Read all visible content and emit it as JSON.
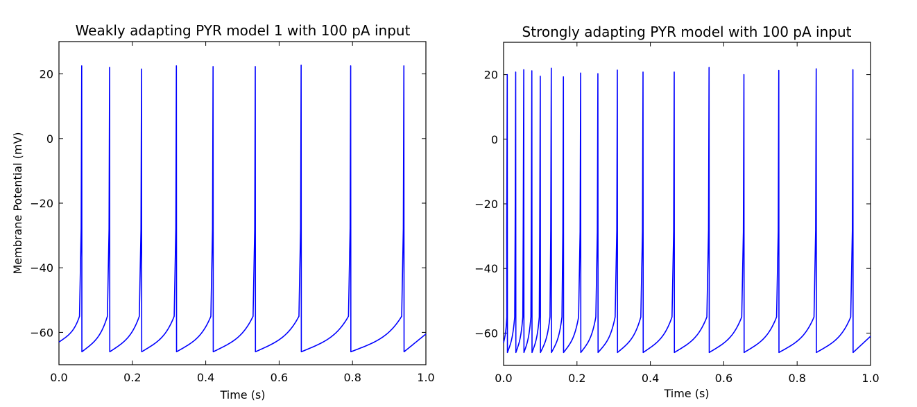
{
  "chart_data": [
    {
      "type": "line",
      "title": "Weakly adapting PYR model 1 with 100 pA input",
      "xlabel": "Time (s)",
      "ylabel": "Membrane Potential (mV)",
      "xlim": [
        0.0,
        1.0
      ],
      "ylim": [
        -70,
        30
      ],
      "xticks": [
        "0.0",
        "0.2",
        "0.4",
        "0.6",
        "0.8",
        "1.0"
      ],
      "yticks": [
        "−60",
        "−40",
        "−20",
        "0",
        "20"
      ],
      "grid": false,
      "color": "#0000ff",
      "baseline_start": -63,
      "reset_potential": -66,
      "threshold": -55,
      "end_value": -60.5,
      "spike_times": [
        0.062,
        0.138,
        0.225,
        0.32,
        0.42,
        0.535,
        0.66,
        0.795,
        0.94
      ],
      "spike_peaks": [
        22.5,
        22.0,
        21.5,
        22.5,
        22.3,
        22.3,
        22.7,
        22.5,
        22.5
      ]
    },
    {
      "type": "line",
      "title": "Strongly adapting PYR model with 100 pA input",
      "xlabel": "Time (s)",
      "ylabel": "",
      "xlim": [
        0.0,
        1.0
      ],
      "ylim": [
        -70,
        30
      ],
      "xticks": [
        "0.0",
        "0.2",
        "0.4",
        "0.6",
        "0.8",
        "1.0"
      ],
      "yticks": [
        "−60",
        "−40",
        "−20",
        "0",
        "20"
      ],
      "grid": false,
      "color": "#0000ff",
      "baseline_start": -63,
      "reset_potential": -66,
      "threshold": -55,
      "end_value": -61,
      "spike_times": [
        0.01,
        0.033,
        0.055,
        0.077,
        0.1,
        0.13,
        0.163,
        0.21,
        0.257,
        0.31,
        0.38,
        0.465,
        0.56,
        0.655,
        0.75,
        0.852,
        0.952
      ],
      "spike_peaks": [
        20.0,
        20.8,
        21.5,
        21.2,
        19.5,
        22.0,
        19.3,
        20.5,
        20.3,
        21.4,
        20.8,
        20.8,
        22.2,
        20.0,
        21.3,
        21.8,
        21.5
      ]
    }
  ]
}
